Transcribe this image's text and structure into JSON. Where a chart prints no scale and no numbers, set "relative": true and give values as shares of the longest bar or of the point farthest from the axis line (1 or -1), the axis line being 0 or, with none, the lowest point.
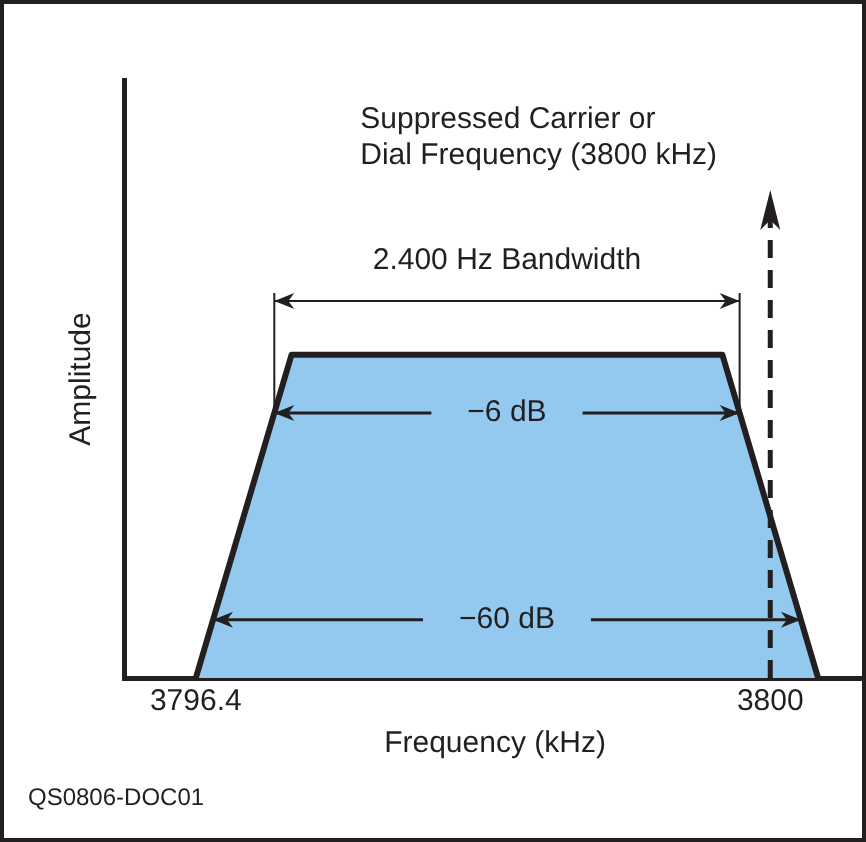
{
  "chart_data": {
    "type": "area",
    "xlabel": "Frequency (kHz)",
    "ylabel": "Amplitude",
    "relative": true,
    "x": [
      3796.4,
      3797.0,
      3799.7,
      3800.3
    ],
    "series": [
      {
        "color": "#93c9ee",
        "values": [
          0,
          1,
          1,
          0
        ]
      }
    ],
    "xlim": [
      3795.95,
      3800.6
    ],
    "xticks": [
      3796.4,
      3800
    ],
    "ref_lines": [
      {
        "axis": "x",
        "value": 3800,
        "label": "Suppressed Carrier or\nDial Frequency (3800 kHz)",
        "line_style": "dashed",
        "color": "#231f20"
      }
    ],
    "annotations": [
      "2.400 Hz Bandwidth",
      "−6 dB",
      "−60 dB",
      "QS0806-DOC01"
    ],
    "grid": false,
    "legend": false
  }
}
